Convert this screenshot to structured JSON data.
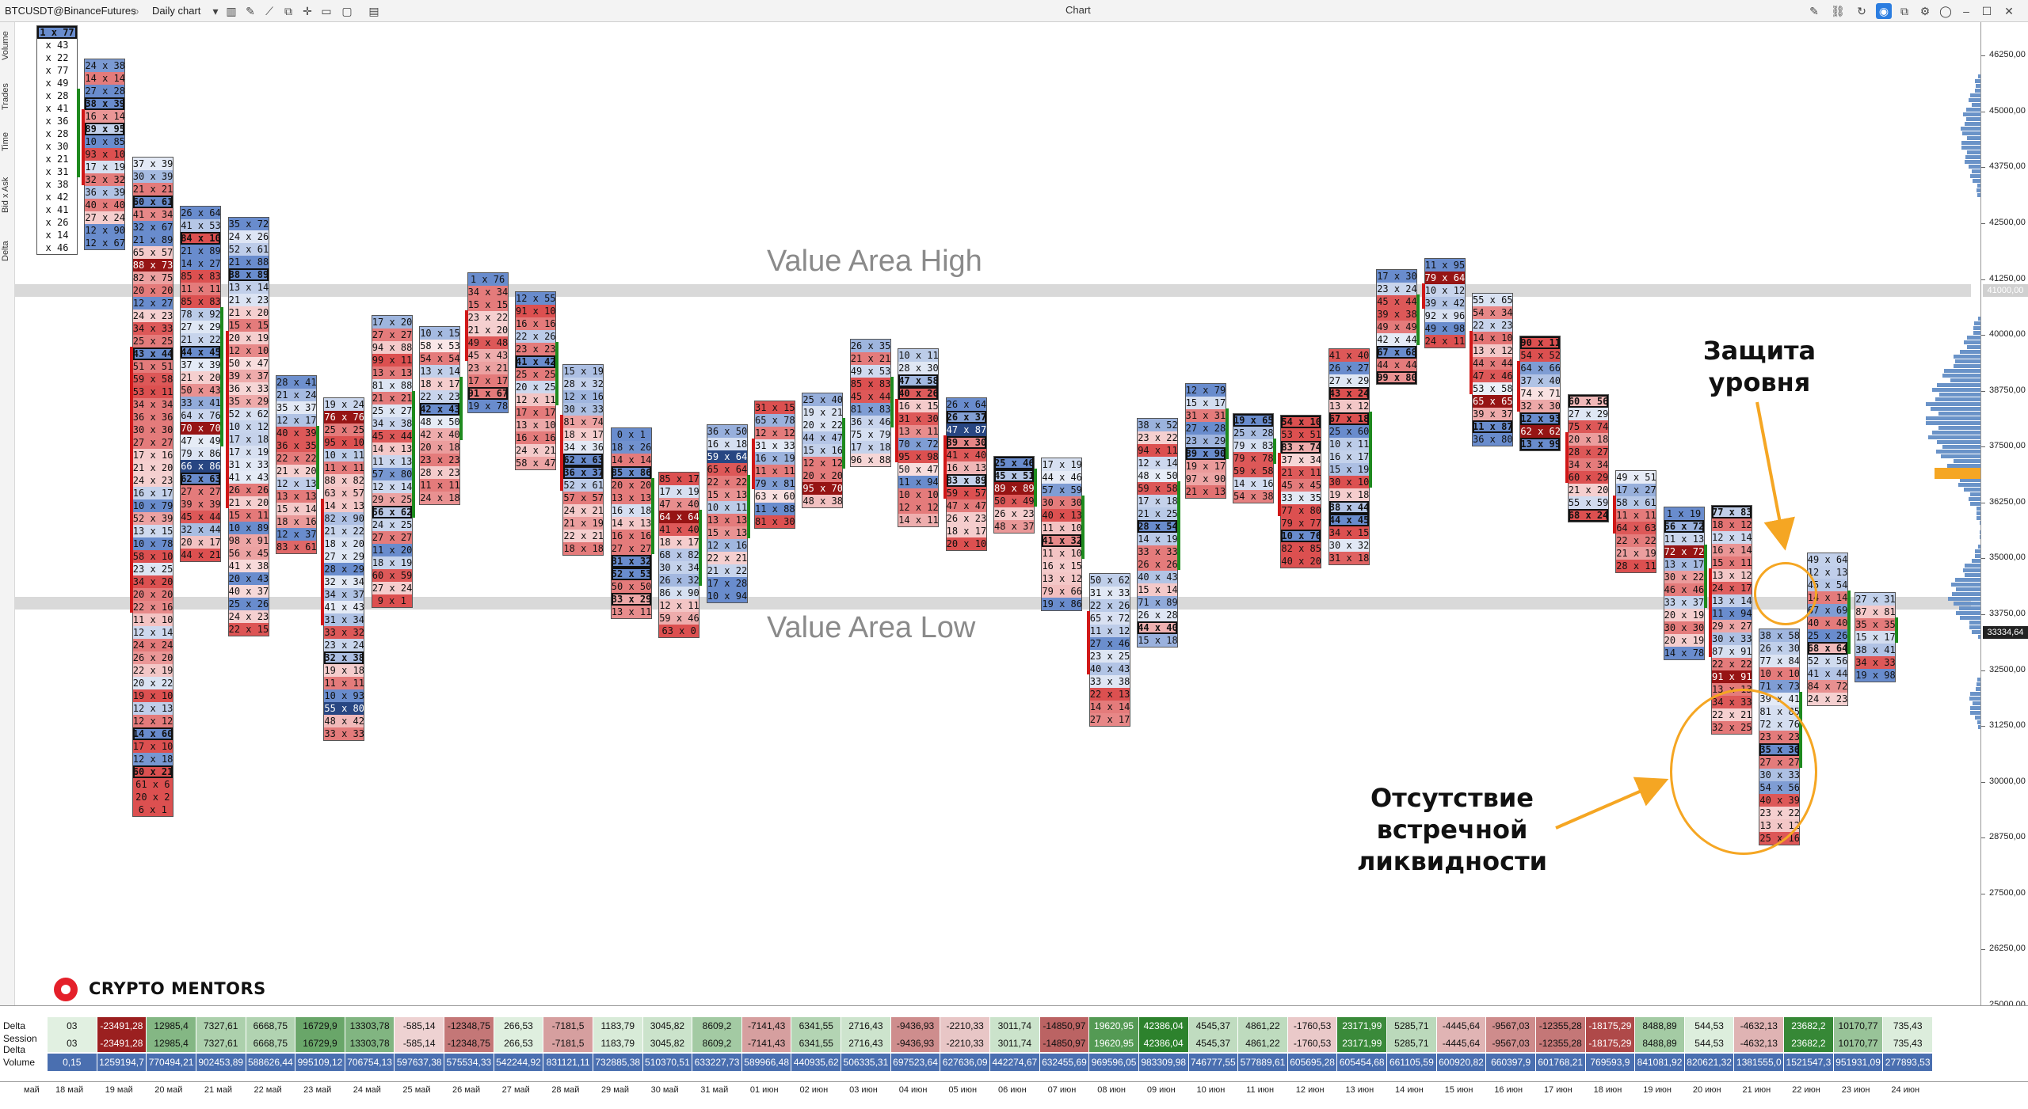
{
  "toolbar": {
    "symbol": "BTCUSDT@BinanceFutures",
    "chart_type": "Daily chart",
    "title": "Chart"
  },
  "left_tabs": [
    "Volume",
    "Trades",
    "Time",
    "Bid x Ask",
    "Delta"
  ],
  "price_axis": {
    "min": 25000,
    "max": 47000,
    "ticks": [
      "46250,00",
      "45000,00",
      "43750,00",
      "42500,00",
      "41250,00",
      "40000,00",
      "38750,00",
      "37500,00",
      "36250,00",
      "35000,00",
      "33750,00",
      "32500,00",
      "31250,00",
      "30000,00",
      "28750,00",
      "27500,00",
      "26250,00",
      "25000,00"
    ],
    "tags": [
      {
        "label": "41000,00",
        "value": 41000,
        "color": "#d0d0d0"
      },
      {
        "label": "33334,64",
        "value": 33334.64,
        "color": "#222222"
      }
    ]
  },
  "value_area": {
    "high_label": "Value Area High",
    "low_label": "Value Area Low",
    "high": 41000,
    "low": 34000
  },
  "annotations": {
    "defense": "Защита\nуровня",
    "no_liquidity": "Отсутствие\nвстречной\nликвидности"
  },
  "logo": "CRYPTO MENTORS",
  "colors": {
    "up": "#1e8a1e",
    "down": "#d01818",
    "poc": "#f5a623",
    "profile": "#6a93c8"
  },
  "bottom_panel": {
    "rows": [
      "Delta",
      "Session Delta",
      "Volume"
    ],
    "delta": [
      "03",
      "-23491,28",
      "12985,4",
      "7327,61",
      "6668,75",
      "16729,9",
      "13303,78",
      "-585,14",
      "-12348,75",
      "266,53",
      "-7181,5",
      "1183,79",
      "3045,82",
      "8609,2",
      "-7141,43",
      "6341,55",
      "2716,43",
      "-9436,93",
      "-2210,33",
      "3011,74",
      "-14850,97",
      "19620,95",
      "42386,04",
      "4545,37",
      "4861,22",
      "-1760,53",
      "23171,99",
      "5285,71",
      "-4445,64",
      "-9567,03",
      "-12355,28",
      "-18175,29",
      "8488,89",
      "544,53",
      "-4632,13",
      "23682,2",
      "10170,77",
      "735,43"
    ],
    "session_delta": [
      "03",
      "-23491,28",
      "12985,4",
      "7327,61",
      "6668,75",
      "16729,9",
      "13303,78",
      "-585,14",
      "-12348,75",
      "266,53",
      "-7181,5",
      "1183,79",
      "3045,82",
      "8609,2",
      "-7141,43",
      "6341,55",
      "2716,43",
      "-9436,93",
      "-2210,33",
      "3011,74",
      "-14850,97",
      "19620,95",
      "42386,04",
      "4545,37",
      "4861,22",
      "-1760,53",
      "23171,99",
      "5285,71",
      "-4445,64",
      "-9567,03",
      "-12355,28",
      "-18175,29",
      "8488,89",
      "544,53",
      "-4632,13",
      "23682,2",
      "10170,77",
      "735,43"
    ],
    "volume": [
      "0,15",
      "1259194,7",
      "770494,21",
      "902453,89",
      "588626,44",
      "995109,12",
      "706754,13",
      "597637,38",
      "575534,33",
      "542244,92",
      "831121,11",
      "732885,38",
      "510370,51",
      "633227,73",
      "589966,48",
      "440935,62",
      "506335,31",
      "697523,64",
      "627636,09",
      "442274,67",
      "632455,69",
      "969596,05",
      "983309,98",
      "746777,55",
      "577889,61",
      "605695,28",
      "605454,68",
      "661105,59",
      "600920,82",
      "660397,9",
      "601768,21",
      "769593,9",
      "841081,92",
      "820621,32",
      "1381555,0",
      "1521547,3",
      "951931,09",
      "277893,53"
    ]
  },
  "x_axis": [
    "май",
    "18 май",
    "19 май",
    "20 май",
    "21 май",
    "22 май",
    "23 май",
    "24 май",
    "25 май",
    "26 май",
    "27 май",
    "28 май",
    "29 май",
    "30 май",
    "31 май",
    "01 июн",
    "02 июн",
    "03 июн",
    "04 июн",
    "05 июн",
    "06 июн",
    "07 июн",
    "08 июн",
    "09 июн",
    "10 июн",
    "11 июн",
    "12 июн",
    "13 июн",
    "14 июн",
    "15 июн",
    "16 июн",
    "17 июн",
    "18 июн",
    "19 июн",
    "20 июн",
    "21 июн",
    "22 июн",
    "23 июн",
    "24 июн"
  ],
  "candles": [
    {
      "cells": [
        "1 x 77",
        "x 43",
        "x 22",
        "x 77",
        "x 49",
        "x 28",
        "x 41",
        "x 36",
        "x 28",
        "x 30",
        "x 21",
        "x 31",
        "x 38",
        "x 42",
        "x 41",
        "x 26",
        "x 14",
        "x 46"
      ]
    },
    {
      "cells": [
        "24 x 38",
        "14 x 14",
        "27 x 28",
        "38 x 39",
        "16 x 14",
        "89 x 95",
        "10 x 85",
        "93 x 10",
        "17 x 19",
        "32 x 32",
        "36 x 39",
        "40 x 40",
        "27 x 24",
        "12 x 90",
        "12 x 67"
      ]
    },
    {
      "cells": [
        "37 x 39",
        "30 x 39",
        "21 x 21",
        "60 x 61",
        "41 x 34",
        "32 x 67",
        "21 x 89",
        "65 x 57",
        "88 x 73",
        "82 x 75",
        "20 x 20",
        "12 x 27",
        "24 x 23",
        "34 x 33",
        "25 x 25",
        "43 x 44",
        "51 x 51",
        "59 x 58",
        "53 x 11",
        "34 x 34",
        "36 x 36",
        "30 x 30",
        "27 x 27",
        "17 x 16",
        "21 x 20",
        "24 x 23",
        "16 x 17",
        "10 x 79",
        "52 x 39",
        "13 x 15",
        "10 x 78",
        "58 x 10",
        "23 x 25",
        "34 x 20",
        "20 x 20",
        "22 x 16",
        "11 x 10",
        "12 x 14",
        "24 x 24",
        "26 x 20",
        "22 x 19",
        "20 x 22",
        "19 x 10",
        "12 x 13",
        "12 x 12",
        "14 x 60",
        "17 x 10",
        "12 x 18",
        "60 x 21",
        "61 x 6",
        "20 x 2",
        "6 x 1"
      ]
    },
    {
      "cells": [
        "26 x 64",
        "41 x 53",
        "84 x 10",
        "21 x 89",
        "14 x 27",
        "85 x 83",
        "11 x 11",
        "85 x 83",
        "78 x 92",
        "27 x 29",
        "21 x 22",
        "44 x 45",
        "37 x 39",
        "21 x 20",
        "50 x 43",
        "33 x 41",
        "64 x 76",
        "70 x 70",
        "47 x 49",
        "79 x 86",
        "66 x 86",
        "62 x 63",
        "27 x 27",
        "39 x 39",
        "45 x 44",
        "32 x 44",
        "20 x 17",
        "44 x 21"
      ]
    },
    {
      "cells": [
        "35 x 72",
        "24 x 26",
        "52 x 61",
        "21 x 88",
        "88 x 89",
        "13 x 14",
        "21 x 23",
        "21 x 20",
        "15 x 15",
        "20 x 19",
        "12 x 10",
        "50 x 47",
        "39 x 37",
        "36 x 33",
        "35 x 29",
        "52 x 62",
        "10 x 12",
        "17 x 18",
        "17 x 19",
        "31 x 33",
        "41 x 43",
        "26 x 26",
        "21 x 20",
        "15 x 11",
        "10 x 89",
        "98 x 91",
        "56 x 45",
        "41 x 38",
        "20 x 43",
        "40 x 37",
        "25 x 26",
        "24 x 23",
        "22 x 15"
      ]
    },
    {
      "cells": [
        "28 x 41",
        "21 x 24",
        "35 x 37",
        "12 x 17",
        "40 x 39",
        "36 x 35",
        "22 x 22",
        "21 x 20",
        "12 x 13",
        "13 x 13",
        "15 x 14",
        "18 x 16",
        "12 x 37",
        "83 x 61"
      ]
    },
    {
      "cells": [
        "19 x 24",
        "76 x 76",
        "25 x 25",
        "95 x 10",
        "10 x 11",
        "11 x 11",
        "88 x 82",
        "63 x 57",
        "14 x 13",
        "82 x 90",
        "21 x 22",
        "18 x 20",
        "27 x 29",
        "28 x 29",
        "32 x 34",
        "34 x 37",
        "41 x 43",
        "31 x 34",
        "33 x 32",
        "23 x 24",
        "32 x 38",
        "19 x 18",
        "11 x 11",
        "10 x 93",
        "55 x 80",
        "48 x 42",
        "33 x 33"
      ]
    },
    {
      "cells": [
        "17 x 20",
        "27 x 27",
        "94 x 88",
        "99 x 11",
        "13 x 13",
        "81 x 88",
        "21 x 21",
        "25 x 27",
        "34 x 38",
        "45 x 44",
        "14 x 13",
        "11 x 13",
        "57 x 80",
        "12 x 14",
        "29 x 25",
        "56 x 62",
        "24 x 25",
        "27 x 27",
        "11 x 20",
        "18 x 19",
        "60 x 59",
        "27 x 24",
        "9 x 1"
      ]
    },
    {
      "cells": [
        "10 x 15",
        "58 x 53",
        "54 x 54",
        "13 x 14",
        "18 x 17",
        "22 x 23",
        "42 x 43",
        "48 x 50",
        "42 x 40",
        "20 x 18",
        "23 x 23",
        "28 x 23",
        "11 x 11",
        "24 x 18"
      ]
    },
    {
      "cells": [
        "1 x 76",
        "34 x 34",
        "15 x 15",
        "23 x 22",
        "21 x 20",
        "49 x 48",
        "45 x 43",
        "23 x 21",
        "17 x 17",
        "91 x 67",
        "19 x 78"
      ]
    },
    {
      "cells": [
        "12 x 55",
        "91 x 10",
        "16 x 16",
        "22 x 26",
        "23 x 23",
        "41 x 42",
        "25 x 25",
        "20 x 25",
        "12 x 11",
        "17 x 17",
        "13 x 10",
        "16 x 16",
        "24 x 21",
        "58 x 47"
      ]
    },
    {
      "cells": [
        "15 x 19",
        "28 x 32",
        "12 x 16",
        "30 x 33",
        "81 x 74",
        "18 x 17",
        "34 x 36",
        "62 x 63",
        "36 x 37",
        "52 x 61",
        "57 x 57",
        "24 x 21",
        "21 x 19",
        "22 x 21",
        "18 x 18"
      ]
    },
    {
      "cells": [
        "0 x 1",
        "18 x 26",
        "14 x 14",
        "85 x 86",
        "20 x 20",
        "13 x 13",
        "16 x 18",
        "14 x 13",
        "16 x 16",
        "27 x 27",
        "31 x 32",
        "52 x 53",
        "50 x 50",
        "33 x 29",
        "13 x 11"
      ]
    },
    {
      "cells": [
        "85 x 17",
        "17 x 19",
        "47 x 40",
        "64 x 64",
        "41 x 40",
        "18 x 17",
        "68 x 82",
        "30 x 34",
        "26 x 32",
        "86 x 90",
        "12 x 11",
        "59 x 46",
        "63 x 0"
      ]
    },
    {
      "cells": [
        "36 x 50",
        "16 x 18",
        "59 x 64",
        "65 x 64",
        "22 x 22",
        "15 x 13",
        "10 x 11",
        "13 x 13",
        "15 x 13",
        "12 x 16",
        "22 x 21",
        "21 x 22",
        "17 x 28",
        "10 x 94"
      ]
    },
    {
      "cells": [
        "31 x 15",
        "65 x 78",
        "12 x 12",
        "31 x 33",
        "16 x 19",
        "11 x 11",
        "79 x 81",
        "63 x 60",
        "11 x 88",
        "81 x 30"
      ]
    },
    {
      "cells": [
        "25 x 40",
        "19 x 21",
        "20 x 22",
        "44 x 47",
        "15 x 16",
        "12 x 12",
        "20 x 20",
        "95 x 70",
        "48 x 38"
      ]
    },
    {
      "cells": [
        "26 x 35",
        "21 x 21",
        "49 x 53",
        "85 x 83",
        "45 x 44",
        "81 x 83",
        "36 x 46",
        "75 x 79",
        "17 x 18",
        "96 x 88"
      ]
    },
    {
      "cells": [
        "10 x 11",
        "28 x 30",
        "47 x 58",
        "40 x 26",
        "16 x 15",
        "31 x 30",
        "13 x 11",
        "70 x 72",
        "95 x 98",
        "50 x 47",
        "11 x 94",
        "10 x 10",
        "12 x 12",
        "14 x 11"
      ]
    },
    {
      "cells": [
        "26 x 64",
        "26 x 37",
        "47 x 87",
        "39 x 30",
        "41 x 40",
        "16 x 13",
        "83 x 89",
        "59 x 57",
        "47 x 47",
        "26 x 23",
        "18 x 17",
        "20 x 10"
      ]
    },
    {
      "cells": [
        "25 x 46",
        "45 x 51",
        "89 x 89",
        "50 x 49",
        "26 x 23",
        "48 x 37"
      ]
    },
    {
      "cells": [
        "17 x 19",
        "44 x 46",
        "57 x 59",
        "30 x 30",
        "40 x 13",
        "11 x 10",
        "41 x 32",
        "11 x 10",
        "16 x 15",
        "13 x 12",
        "79 x 66",
        "19 x 86"
      ]
    },
    {
      "cells": [
        "50 x 62",
        "31 x 33",
        "22 x 26",
        "65 x 72",
        "11 x 12",
        "27 x 46",
        "23 x 25",
        "40 x 43",
        "33 x 38",
        "22 x 13",
        "14 x 14",
        "27 x 17"
      ]
    },
    {
      "cells": [
        "38 x 52",
        "23 x 22",
        "94 x 11",
        "12 x 14",
        "48 x 50",
        "59 x 58",
        "17 x 18",
        "21 x 25",
        "28 x 54",
        "14 x 19",
        "33 x 33",
        "26 x 26",
        "40 x 43",
        "15 x 14",
        "71 x 89",
        "26 x 28",
        "44 x 40",
        "15 x 18"
      ]
    },
    {
      "cells": [
        "12 x 79",
        "15 x 17",
        "31 x 31",
        "27 x 28",
        "23 x 29",
        "89 x 90",
        "19 x 17",
        "97 x 90",
        "21 x 13"
      ]
    },
    {
      "cells": [
        "19 x 65",
        "25 x 28",
        "79 x 83",
        "79 x 78",
        "59 x 58",
        "14 x 16",
        "54 x 38"
      ]
    },
    {
      "cells": [
        "54 x 10",
        "53 x 51",
        "83 x 74",
        "37 x 34",
        "21 x 11",
        "45 x 45",
        "33 x 35",
        "77 x 80",
        "79 x 77",
        "10 x 76",
        "82 x 85",
        "40 x 20"
      ]
    },
    {
      "cells": [
        "41 x 40",
        "26 x 27",
        "27 x 29",
        "43 x 24",
        "13 x 12",
        "67 x 18",
        "25 x 60",
        "10 x 11",
        "16 x 17",
        "15 x 19",
        "30 x 10",
        "19 x 18",
        "38 x 44",
        "44 x 45",
        "34 x 15",
        "30 x 32",
        "31 x 18"
      ]
    },
    {
      "cells": [
        "17 x 30",
        "23 x 24",
        "45 x 44",
        "39 x 38",
        "49 x 49",
        "42 x 44",
        "67 x 68",
        "44 x 44",
        "99 x 80"
      ]
    },
    {
      "cells": [
        "11 x 95",
        "79 x 64",
        "10 x 12",
        "39 x 42",
        "92 x 96",
        "49 x 98",
        "24 x 11"
      ]
    },
    {
      "cells": [
        "55 x 65",
        "54 x 34",
        "22 x 23",
        "14 x 10",
        "13 x 12",
        "44 x 44",
        "47 x 46",
        "53 x 58",
        "65 x 65",
        "39 x 37",
        "11 x 87",
        "36 x 80"
      ]
    },
    {
      "cells": [
        "90 x 11",
        "54 x 52",
        "64 x 66",
        "37 x 40",
        "74 x 71",
        "32 x 30",
        "12 x 93",
        "62 x 62",
        "13 x 99"
      ]
    },
    {
      "cells": [
        "60 x 56",
        "27 x 29",
        "75 x 74",
        "20 x 18",
        "28 x 27",
        "34 x 34",
        "60 x 29",
        "21 x 20",
        "55 x 59",
        "68 x 24"
      ]
    },
    {
      "cells": [
        "49 x 51",
        "17 x 27",
        "58 x 61",
        "11 x 11",
        "64 x 63",
        "22 x 22",
        "21 x 19",
        "28 x 11"
      ]
    },
    {
      "cells": [
        "1 x 19",
        "56 x 72",
        "11 x 13",
        "72 x 72",
        "13 x 17",
        "30 x 22",
        "46 x 46",
        "33 x 37",
        "20 x 19",
        "30 x 30",
        "20 x 19",
        "14 x 78"
      ]
    },
    {
      "cells": [
        "77 x 83",
        "18 x 12",
        "12 x 14",
        "16 x 14",
        "15 x 11",
        "13 x 12",
        "24 x 17",
        "13 x 14",
        "11 x 94",
        "29 x 27",
        "30 x 33",
        "87 x 91",
        "22 x 22",
        "91 x 91",
        "13 x 13",
        "34 x 33",
        "22 x 21",
        "32 x 25"
      ]
    },
    {
      "cells": [
        "38 x 58",
        "26 x 30",
        "77 x 84",
        "10 x 10",
        "71 x 73",
        "39 x 41",
        "81 x 85",
        "72 x 76",
        "23 x 23",
        "35 x 36",
        "27 x 27",
        "30 x 33",
        "54 x 56",
        "40 x 39",
        "23 x 22",
        "13 x 12",
        "25 x 16"
      ]
    },
    {
      "cells": [
        "49 x 64",
        "12 x 13",
        "45 x 54",
        "14 x 14",
        "67 x 69",
        "40 x 40",
        "25 x 26",
        "68 x 64",
        "52 x 56",
        "41 x 44",
        "84 x 72",
        "24 x 23"
      ]
    },
    {
      "cells": [
        "27 x 31",
        "87 x 81",
        "35 x 35",
        "15 x 17",
        "38 x 41",
        "34 x 33",
        "19 x 98"
      ]
    }
  ]
}
